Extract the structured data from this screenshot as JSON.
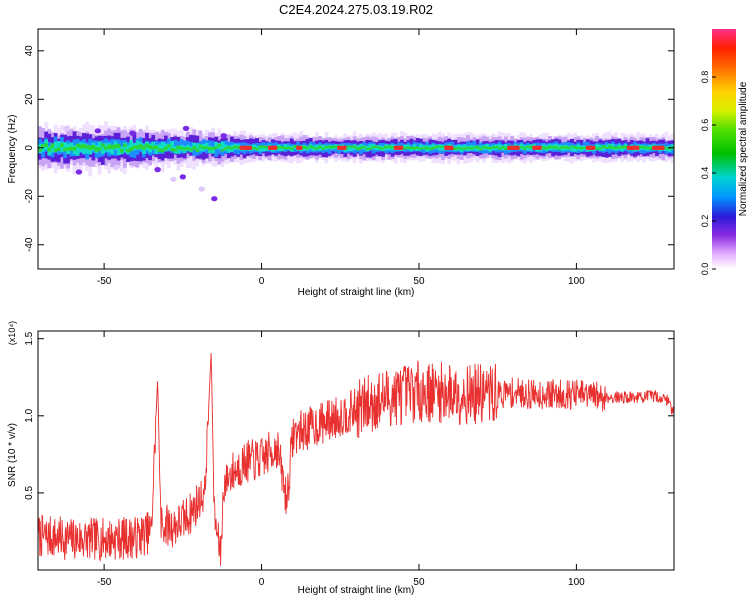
{
  "title": "C2E4.2024.275.03.19.R02",
  "colors": {
    "snr_line": "#e8302f",
    "spectrogram_peak": "#e8302f",
    "background": "#ffffff"
  },
  "chart_data": [
    {
      "type": "heatmap",
      "xlabel": "Height of straight line (km)",
      "ylabel": "Frequency (Hz)",
      "xlim": [
        -71,
        131
      ],
      "ylim": [
        -50,
        49
      ],
      "x_ticks": [
        -50,
        0,
        50,
        100
      ],
      "y_ticks": [
        40,
        20,
        0,
        -20,
        -40
      ],
      "x_tick_labels": [
        "-50",
        "0",
        "50",
        "100"
      ],
      "y_tick_labels": [
        "40",
        "20",
        "0",
        "-20",
        "-40"
      ],
      "colorbar": {
        "label": "Normalized spectral amplitude",
        "range": [
          0,
          1
        ],
        "ticks": [
          0.0,
          0.2,
          0.4,
          0.6,
          0.8
        ],
        "tick_labels": [
          "0.0",
          "0.2",
          "0.4",
          "0.6",
          "0.8"
        ],
        "colormap": "rainbow"
      },
      "band": {
        "center_frequency_hz": 0,
        "halfwidth_hz": [
          [
            -71,
            5
          ],
          [
            -40,
            5
          ],
          [
            -30,
            4
          ],
          [
            -20,
            4
          ],
          [
            0,
            3
          ],
          [
            50,
            3
          ],
          [
            100,
            3
          ],
          [
            131,
            3
          ]
        ]
      },
      "peak_segments": [
        [
          -7,
          -3
        ],
        [
          2,
          5
        ],
        [
          11,
          13
        ],
        [
          24,
          27
        ],
        [
          42,
          45
        ],
        [
          58,
          61
        ],
        [
          78,
          82
        ],
        [
          86,
          89
        ],
        [
          103,
          106
        ],
        [
          116,
          120
        ],
        [
          124,
          128
        ]
      ],
      "scattered_features": [
        {
          "x": -62,
          "freq": 8
        },
        {
          "x": -58,
          "freq": -10
        },
        {
          "x": -52,
          "freq": 7
        },
        {
          "x": -46,
          "freq": -8
        },
        {
          "x": -41,
          "freq": 6
        },
        {
          "x": -33,
          "freq": -9
        },
        {
          "x": -28,
          "freq": -13
        },
        {
          "x": -25,
          "freq": -12
        },
        {
          "x": -24,
          "freq": 8
        },
        {
          "x": -19,
          "freq": -17
        },
        {
          "x": -15,
          "freq": -21
        },
        {
          "x": -12,
          "freq": 5
        }
      ],
      "grid": false
    },
    {
      "type": "line",
      "xlabel": "Height of straight line (km)",
      "ylabel": "SNR (10 * v/v)",
      "exponent_label": "(x10⁴)",
      "xlim": [
        -71,
        131
      ],
      "ylim": [
        0,
        1.55
      ],
      "x_ticks": [
        -50,
        0,
        50,
        100
      ],
      "y_ticks": [
        0.5,
        1.0,
        1.5
      ],
      "x_tick_labels": [
        "-50",
        "0",
        "50",
        "100"
      ],
      "y_tick_labels": [
        "0.5",
        "1.0",
        "1.5"
      ],
      "series": [
        {
          "x": [
            -71,
            -60,
            -50,
            -40,
            -35,
            -33,
            -32,
            -28,
            -25,
            -22,
            -20,
            -18,
            -16,
            -15,
            -13,
            -12,
            -10,
            -5,
            0,
            5,
            8,
            10,
            15,
            20,
            25,
            30,
            35,
            40,
            45,
            50,
            55,
            60,
            65,
            70,
            75,
            80,
            85,
            90,
            95,
            100,
            105,
            110,
            115,
            120,
            125,
            129,
            131
          ],
          "values": [
            0.22,
            0.2,
            0.2,
            0.21,
            0.25,
            1.25,
            0.3,
            0.28,
            0.32,
            0.38,
            0.45,
            0.5,
            1.42,
            0.35,
            0.1,
            0.55,
            0.62,
            0.7,
            0.72,
            0.8,
            0.45,
            0.88,
            0.92,
            0.96,
            1.0,
            1.04,
            1.08,
            1.12,
            1.14,
            1.16,
            1.15,
            1.15,
            1.14,
            1.14,
            1.14,
            1.15,
            1.14,
            1.14,
            1.14,
            1.14,
            1.13,
            1.12,
            1.12,
            1.12,
            1.13,
            1.1,
            1.02
          ]
        }
      ],
      "grid": false
    }
  ]
}
